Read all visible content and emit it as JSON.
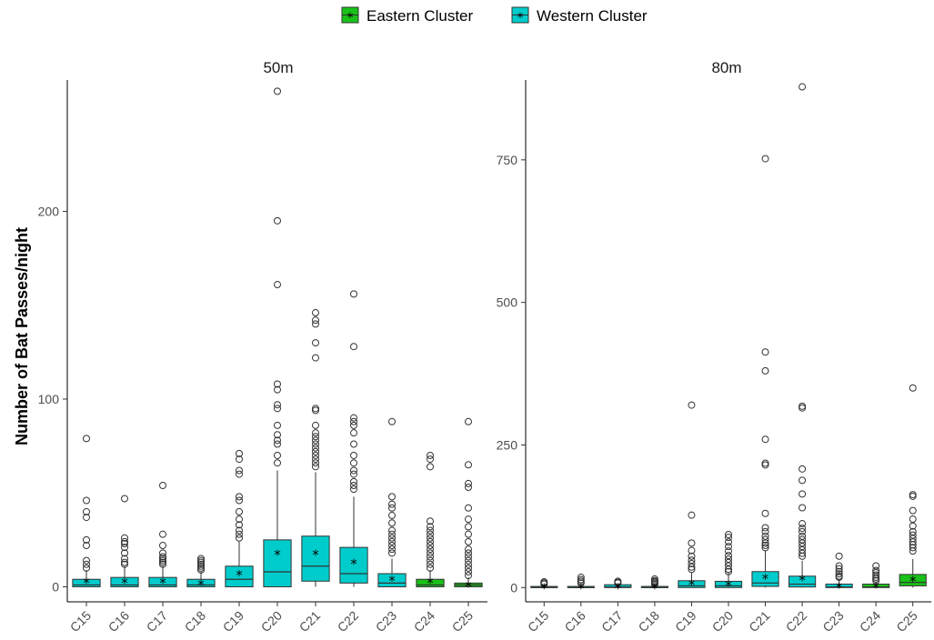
{
  "chart_data": {
    "type": "box",
    "ylabel": "Number of Bat Passes/night",
    "categories": [
      "C15",
      "C16",
      "C17",
      "C18",
      "C19",
      "C20",
      "C21",
      "C22",
      "C23",
      "C24",
      "C25"
    ],
    "legend": {
      "position": "top",
      "items": [
        {
          "name": "Eastern Cluster",
          "color": "#19c219"
        },
        {
          "name": "Western Cluster",
          "color": "#00cccc"
        }
      ]
    },
    "grid": false,
    "panels": [
      {
        "title": "50m",
        "ylim": [
          -8,
          270
        ],
        "yticks": [
          0,
          100,
          200
        ],
        "boxes": [
          {
            "site": "C15",
            "cluster": "Western Cluster",
            "q1": 0,
            "median": 1,
            "q3": 4,
            "whisker_low": 0,
            "whisker_high": 9,
            "mean": 3,
            "outliers": [
              79,
              46,
              40,
              37,
              25,
              22,
              14,
              12,
              10
            ]
          },
          {
            "site": "C16",
            "cluster": "Western Cluster",
            "q1": 0,
            "median": 1,
            "q3": 5,
            "whisker_low": 0,
            "whisker_high": 11,
            "mean": 3,
            "outliers": [
              47,
              26,
              24,
              23,
              21,
              18,
              15,
              13,
              12
            ]
          },
          {
            "site": "C17",
            "cluster": "Western Cluster",
            "q1": 0,
            "median": 1,
            "q3": 5,
            "whisker_low": 0,
            "whisker_high": 11,
            "mean": 3,
            "outliers": [
              54,
              28,
              22,
              18,
              16,
              15,
              14,
              13,
              12
            ]
          },
          {
            "site": "C18",
            "cluster": "Western Cluster",
            "q1": 0,
            "median": 1,
            "q3": 4,
            "whisker_low": 0,
            "whisker_high": 8,
            "mean": 2,
            "outliers": [
              15,
              14,
              13,
              12,
              11,
              10,
              9
            ]
          },
          {
            "site": "C19",
            "cluster": "Western Cluster",
            "q1": 0,
            "median": 4,
            "q3": 11,
            "whisker_low": 0,
            "whisker_high": 24,
            "mean": 7,
            "outliers": [
              71,
              68,
              62,
              60,
              48,
              46,
              40,
              36,
              33,
              30,
              28,
              26
            ]
          },
          {
            "site": "C20",
            "cluster": "Western Cluster",
            "q1": 0,
            "median": 8,
            "q3": 25,
            "whisker_low": 0,
            "whisker_high": 62,
            "mean": 18,
            "outliers": [
              264,
              195,
              161,
              108,
              105,
              97,
              95,
              86,
              81,
              78,
              76,
              70,
              66
            ]
          },
          {
            "site": "C21",
            "cluster": "Western Cluster",
            "q1": 3,
            "median": 11,
            "q3": 27,
            "whisker_low": 0,
            "whisker_high": 61,
            "mean": 18,
            "outliers": [
              146,
              142,
              140,
              130,
              122,
              95,
              94,
              86,
              82,
              80,
              78,
              76,
              74,
              72,
              70,
              68,
              66,
              64
            ]
          },
          {
            "site": "C22",
            "cluster": "Western Cluster",
            "q1": 2,
            "median": 7,
            "q3": 21,
            "whisker_low": 0,
            "whisker_high": 48,
            "mean": 13,
            "outliers": [
              156,
              128,
              90,
              88,
              86,
              82,
              76,
              70,
              66,
              62,
              60,
              56,
              54,
              52
            ]
          },
          {
            "site": "C23",
            "cluster": "Western Cluster",
            "q1": 0,
            "median": 2,
            "q3": 7,
            "whisker_low": 0,
            "whisker_high": 15,
            "mean": 4,
            "outliers": [
              88,
              48,
              44,
              42,
              38,
              34,
              30,
              28,
              26,
              24,
              22,
              20,
              18
            ]
          },
          {
            "site": "C24",
            "cluster": "Eastern Cluster",
            "q1": 0,
            "median": 1,
            "q3": 4,
            "whisker_low": 0,
            "whisker_high": 9,
            "mean": 3,
            "outliers": [
              70,
              68,
              64,
              35,
              32,
              30,
              28,
              26,
              24,
              22,
              20,
              18,
              16,
              14,
              12,
              10
            ]
          },
          {
            "site": "C25",
            "cluster": "Eastern Cluster",
            "q1": 0,
            "median": 1,
            "q3": 2,
            "whisker_low": 0,
            "whisker_high": 5,
            "mean": 1,
            "outliers": [
              88,
              65,
              55,
              53,
              42,
              36,
              32,
              28,
              24,
              20,
              18,
              16,
              14,
              12,
              10,
              8,
              6
            ]
          }
        ]
      },
      {
        "title": "80m",
        "ylim": [
          -25,
          890
        ],
        "yticks": [
          0,
          250,
          500,
          750
        ],
        "boxes": [
          {
            "site": "C15",
            "cluster": "Western Cluster",
            "q1": 0,
            "median": 0,
            "q3": 2,
            "whisker_low": 0,
            "whisker_high": 4,
            "mean": 1,
            "outliers": [
              10,
              8,
              6
            ]
          },
          {
            "site": "C16",
            "cluster": "Western Cluster",
            "q1": 0,
            "median": 0,
            "q3": 2,
            "whisker_low": 0,
            "whisker_high": 5,
            "mean": 1,
            "outliers": [
              18,
              14,
              11,
              8
            ]
          },
          {
            "site": "C17",
            "cluster": "Western Cluster",
            "q1": 0,
            "median": 1,
            "q3": 5,
            "whisker_low": 0,
            "whisker_high": 6,
            "mean": 1,
            "outliers": [
              11,
              9,
              8
            ]
          },
          {
            "site": "C18",
            "cluster": "Western Cluster",
            "q1": 0,
            "median": 0,
            "q3": 2,
            "whisker_low": 0,
            "whisker_high": 4,
            "mean": 1,
            "outliers": [
              15,
              12,
              10,
              8,
              6
            ]
          },
          {
            "site": "C19",
            "cluster": "Western Cluster",
            "q1": 0,
            "median": 3,
            "q3": 12,
            "whisker_low": 0,
            "whisker_high": 26,
            "mean": 8,
            "outliers": [
              320,
              127,
              78,
              65,
              55,
              48,
              42,
              36,
              32
            ]
          },
          {
            "site": "C20",
            "cluster": "Western Cluster",
            "q1": 0,
            "median": 3,
            "q3": 11,
            "whisker_low": 0,
            "whisker_high": 26,
            "mean": 6,
            "outliers": [
              93,
              88,
              80,
              72,
              64,
              56,
              50,
              44,
              38,
              32,
              28
            ]
          },
          {
            "site": "C21",
            "cluster": "Western Cluster",
            "q1": 2,
            "median": 8,
            "q3": 28,
            "whisker_low": 0,
            "whisker_high": 65,
            "mean": 18,
            "outliers": [
              752,
              413,
              380,
              260,
              218,
              215,
              130,
              105,
              98,
              90,
              84,
              78,
              74,
              70
            ]
          },
          {
            "site": "C22",
            "cluster": "Western Cluster",
            "q1": 1,
            "median": 6,
            "q3": 20,
            "whisker_low": 0,
            "whisker_high": 47,
            "mean": 16,
            "outliers": [
              878,
              318,
              315,
              208,
              188,
              164,
              140,
              112,
              104,
              98,
              90,
              84,
              78,
              72,
              66,
              60,
              55
            ]
          },
          {
            "site": "C23",
            "cluster": "Western Cluster",
            "q1": 0,
            "median": 1,
            "q3": 6,
            "whisker_low": 0,
            "whisker_high": 14,
            "mean": 3,
            "outliers": [
              55,
              38,
              33,
              28,
              24,
              20,
              18
            ]
          },
          {
            "site": "C24",
            "cluster": "Eastern Cluster",
            "q1": 0,
            "median": 1,
            "q3": 6,
            "whisker_low": 0,
            "whisker_high": 10,
            "mean": 3,
            "outliers": [
              38,
              30,
              26,
              22,
              18,
              15,
              12
            ]
          },
          {
            "site": "C25",
            "cluster": "Eastern Cluster",
            "q1": 3,
            "median": 9,
            "q3": 23,
            "whisker_low": 0,
            "whisker_high": 50,
            "mean": 14,
            "outliers": [
              350,
              163,
              160,
              135,
              120,
              108,
              98,
              92,
              86,
              80,
              75,
              70,
              64
            ]
          }
        ]
      }
    ]
  }
}
